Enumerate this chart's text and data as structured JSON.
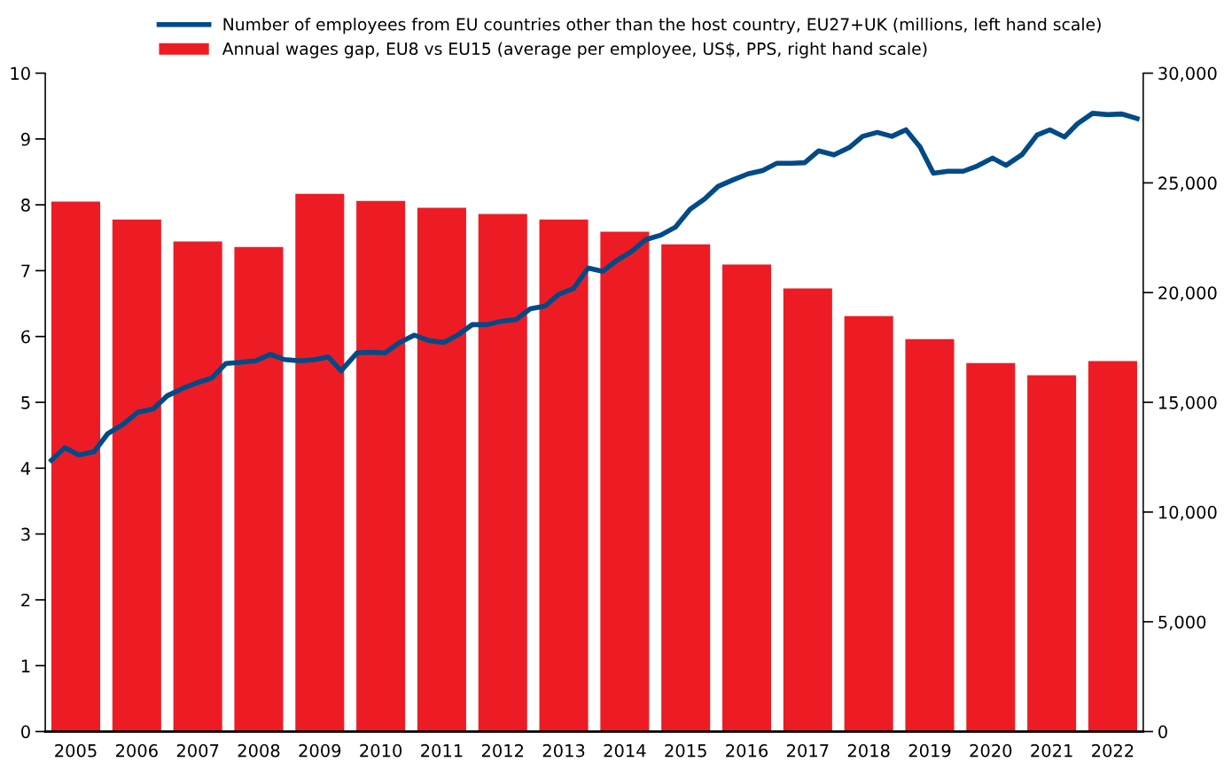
{
  "chart_data": {
    "type": "bar",
    "x": [
      2005,
      2006,
      2007,
      2008,
      2009,
      2010,
      2011,
      2012,
      2013,
      2014,
      2015,
      2016,
      2017,
      2018,
      2019,
      2020,
      2021,
      2022
    ],
    "xlim": [
      2004.5,
      2022.5
    ],
    "xticks": [
      2005,
      2006,
      2007,
      2008,
      2009,
      2010,
      2011,
      2012,
      2013,
      2014,
      2015,
      2016,
      2017,
      2018,
      2019,
      2020,
      2021,
      2022
    ],
    "ylim": [
      0,
      10
    ],
    "yticks": [
      0,
      1,
      2,
      3,
      4,
      5,
      6,
      7,
      8,
      9,
      10
    ],
    "y2lim": [
      0,
      30000
    ],
    "y2ticks": [
      {
        "value": 0,
        "label": "0"
      },
      {
        "value": 5000,
        "label": "5,000"
      },
      {
        "value": 10000,
        "label": "10,000"
      },
      {
        "value": 15000,
        "label": "15,000"
      },
      {
        "value": 20000,
        "label": "20,000"
      },
      {
        "value": 25000,
        "label": "25,000"
      },
      {
        "value": 30000,
        "label": "30,000"
      }
    ],
    "grid": false,
    "legend": "top",
    "series": [
      {
        "name": "Annual wages gap, EU8 vs EU15 (average per employee, US$, PPS, right hand scale)",
        "axis": "y2",
        "color": "#ed1c24",
        "values": [
          24150,
          23330,
          22330,
          22080,
          24500,
          24180,
          23860,
          23580,
          23330,
          22770,
          22200,
          21280,
          20190,
          18930,
          17880,
          16790,
          16230,
          16880
        ]
      },
      {
        "name": "Number of employees from EU countries other than the host country, EU27+UK (millions, left hand scale)",
        "type": "line",
        "color": "#004a87",
        "marker": "none",
        "line_style": "solid",
        "x": [
          2004.6,
          2004.82,
          2005.05,
          2005.3,
          2005.52,
          2005.78,
          2006.02,
          2006.27,
          2006.5,
          2006.75,
          2007.0,
          2007.23,
          2007.46,
          2007.72,
          2007.95,
          2008.19,
          2008.42,
          2008.68,
          2008.93,
          2009.14,
          2009.35,
          2009.61,
          2009.84,
          2010.07,
          2010.31,
          2010.55,
          2010.78,
          2011.03,
          2011.26,
          2011.5,
          2011.74,
          2011.97,
          2012.22,
          2012.45,
          2012.69,
          2012.92,
          2013.16,
          2013.4,
          2013.64,
          2013.86,
          2014.11,
          2014.34,
          2014.59,
          2014.83,
          2015.07,
          2015.31,
          2015.53,
          2015.78,
          2016.02,
          2016.26,
          2016.49,
          2016.74,
          2016.95,
          2017.18,
          2017.43,
          2017.68,
          2017.9,
          2018.14,
          2018.38,
          2018.61,
          2018.84,
          2019.06,
          2019.3,
          2019.55,
          2019.78,
          2020.03,
          2020.25,
          2020.51,
          2020.76,
          2020.97,
          2021.21,
          2021.42,
          2021.67,
          2021.92,
          2022.15,
          2022.4
        ],
        "values": [
          4.12,
          4.31,
          4.2,
          4.25,
          4.52,
          4.67,
          4.85,
          4.9,
          5.1,
          5.21,
          5.3,
          5.37,
          5.59,
          5.61,
          5.63,
          5.73,
          5.65,
          5.63,
          5.65,
          5.69,
          5.48,
          5.75,
          5.76,
          5.75,
          5.91,
          6.02,
          5.94,
          5.91,
          6.02,
          6.18,
          6.18,
          6.23,
          6.26,
          6.42,
          6.46,
          6.64,
          6.73,
          7.04,
          6.99,
          7.15,
          7.29,
          7.47,
          7.54,
          7.66,
          7.93,
          8.09,
          8.28,
          8.38,
          8.47,
          8.52,
          8.63,
          8.63,
          8.64,
          8.82,
          8.76,
          8.87,
          9.04,
          9.1,
          9.04,
          9.14,
          8.88,
          8.48,
          8.51,
          8.51,
          8.59,
          8.71,
          8.6,
          8.76,
          9.06,
          9.14,
          9.03,
          9.23,
          9.39,
          9.37,
          9.38,
          9.31
        ]
      }
    ]
  }
}
